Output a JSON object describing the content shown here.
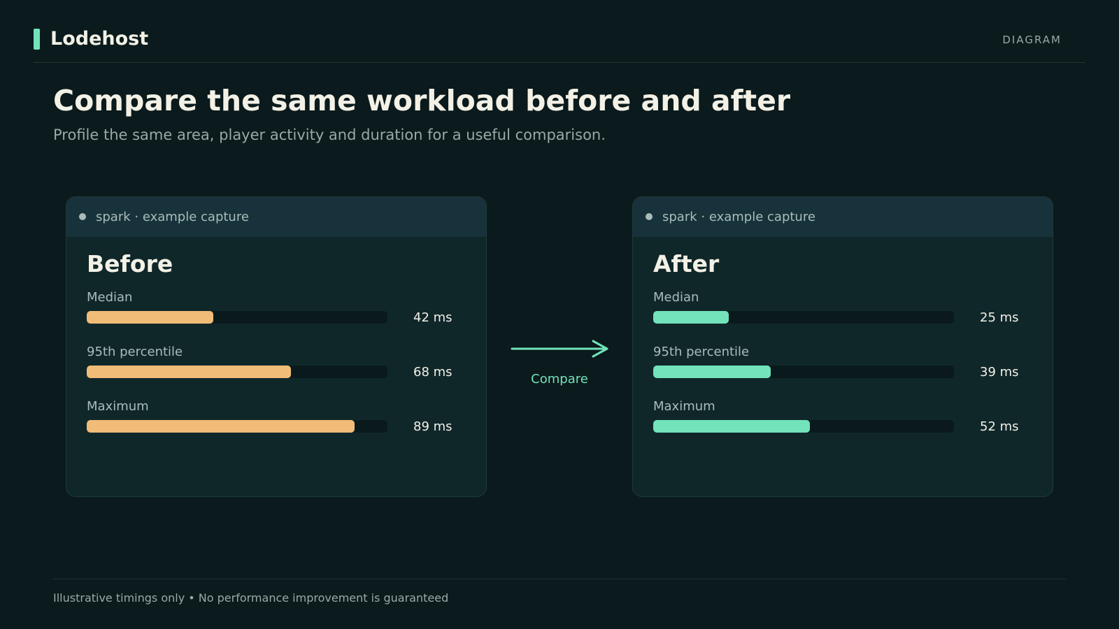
{
  "header": {
    "brand": "Lodehost",
    "tag": "DIAGRAM"
  },
  "title": "Compare the same workload before and after",
  "subtitle": "Profile the same area, player activity and duration for a useful comparison.",
  "scale_max_ms": 100,
  "colors": {
    "accent": "#72e3ba",
    "before_bar": "#f0bc78",
    "after_bar": "#72e3ba"
  },
  "before": {
    "caption": "spark · example capture",
    "title": "Before",
    "metrics": [
      {
        "label": "Median",
        "value_ms": 42,
        "value_text": "42 ms"
      },
      {
        "label": "95th percentile",
        "value_ms": 68,
        "value_text": "68 ms"
      },
      {
        "label": "Maximum",
        "value_ms": 89,
        "value_text": "89 ms"
      }
    ]
  },
  "arrow": {
    "label": "Compare"
  },
  "after": {
    "caption": "spark · example capture",
    "title": "After",
    "metrics": [
      {
        "label": "Median",
        "value_ms": 25,
        "value_text": "25 ms"
      },
      {
        "label": "95th percentile",
        "value_ms": 39,
        "value_text": "39 ms"
      },
      {
        "label": "Maximum",
        "value_ms": 52,
        "value_text": "52 ms"
      }
    ]
  },
  "footer": "Illustrative timings only • No performance improvement is guaranteed"
}
